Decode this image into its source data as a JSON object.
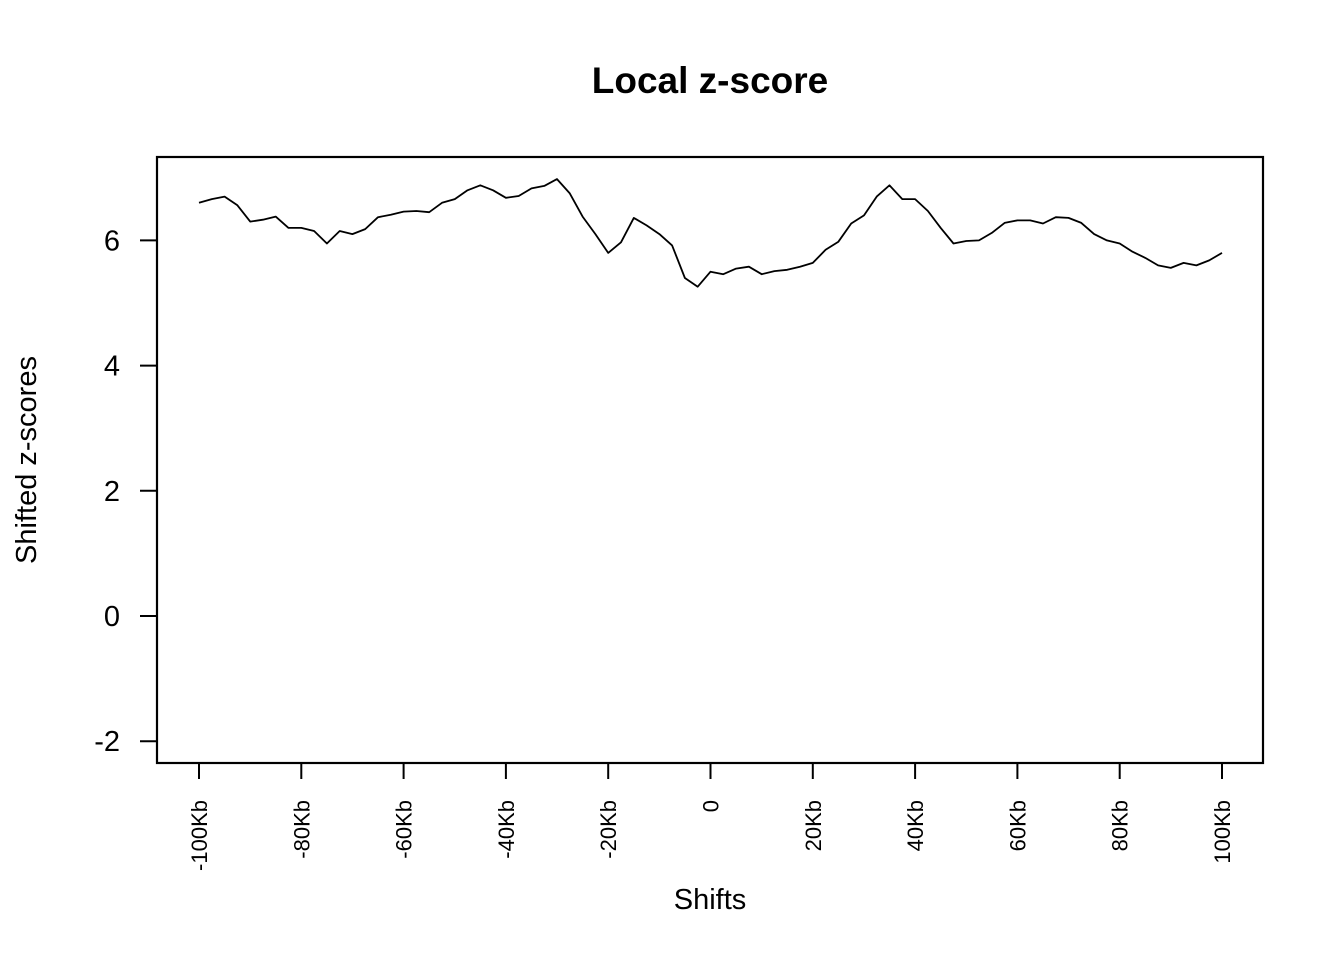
{
  "chart_data": {
    "type": "line",
    "title": "Local z-score",
    "xlabel": "Shifts",
    "ylabel": "Shifted z-scores",
    "xlim": [
      -100,
      100
    ],
    "ylim": [
      -2,
      7
    ],
    "yticks": [
      -2,
      0,
      2,
      4,
      6
    ],
    "xticks": [
      {
        "value": -100,
        "label": "-100Kb"
      },
      {
        "value": -80,
        "label": "-80Kb"
      },
      {
        "value": -60,
        "label": "-60Kb"
      },
      {
        "value": -40,
        "label": "-40Kb"
      },
      {
        "value": -20,
        "label": "-20Kb"
      },
      {
        "value": 0,
        "label": "0"
      },
      {
        "value": 20,
        "label": "20Kb"
      },
      {
        "value": 40,
        "label": "40Kb"
      },
      {
        "value": 60,
        "label": "60Kb"
      },
      {
        "value": 80,
        "label": "80Kb"
      },
      {
        "value": 100,
        "label": "100Kb"
      }
    ],
    "grid": false,
    "line_color": "#000000",
    "series": [
      {
        "x": [
          -100,
          -97.5,
          -95,
          -92.5,
          -90,
          -87.5,
          -85,
          -82.5,
          -80,
          -77.5,
          -75,
          -72.5,
          -70,
          -67.5,
          -65,
          -62.5,
          -60,
          -57.5,
          -55,
          -52.5,
          -50,
          -47.5,
          -45,
          -42.5,
          -40,
          -37.5,
          -35,
          -32.5,
          -30,
          -27.5,
          -25,
          -22.5,
          -20,
          -17.5,
          -15,
          -12.5,
          -10,
          -7.5,
          -5,
          -2.5,
          0,
          2.5,
          5,
          7.5,
          10,
          12.5,
          15,
          17.5,
          20,
          22.5,
          25,
          27.5,
          30,
          32.5,
          35,
          37.5,
          40,
          42.5,
          45,
          47.5,
          50,
          52.5,
          55,
          57.5,
          60,
          62.5,
          65,
          67.5,
          70,
          72.5,
          75,
          77.5,
          80,
          82.5,
          85,
          87.5,
          90,
          92.5,
          95,
          97.5,
          100
        ],
        "y": [
          6.6,
          6.66,
          6.7,
          6.56,
          6.3,
          6.33,
          6.38,
          6.2,
          6.2,
          6.15,
          5.95,
          6.15,
          6.1,
          6.18,
          6.37,
          6.41,
          6.46,
          6.47,
          6.45,
          6.6,
          6.66,
          6.8,
          6.88,
          6.8,
          6.68,
          6.71,
          6.83,
          6.87,
          6.98,
          6.75,
          6.38,
          6.1,
          5.8,
          5.97,
          6.36,
          6.24,
          6.1,
          5.92,
          5.4,
          5.26,
          5.5,
          5.46,
          5.55,
          5.58,
          5.46,
          5.51,
          5.53,
          5.58,
          5.64,
          5.85,
          5.98,
          6.27,
          6.4,
          6.7,
          6.88,
          6.66,
          6.66,
          6.47,
          6.2,
          5.95,
          5.99,
          6.0,
          6.12,
          6.28,
          6.32,
          6.32,
          6.27,
          6.37,
          6.36,
          6.28,
          6.1,
          6.0,
          5.95,
          5.82,
          5.72,
          5.6,
          5.56,
          5.64,
          5.6,
          5.68,
          5.8
        ]
      }
    ]
  }
}
